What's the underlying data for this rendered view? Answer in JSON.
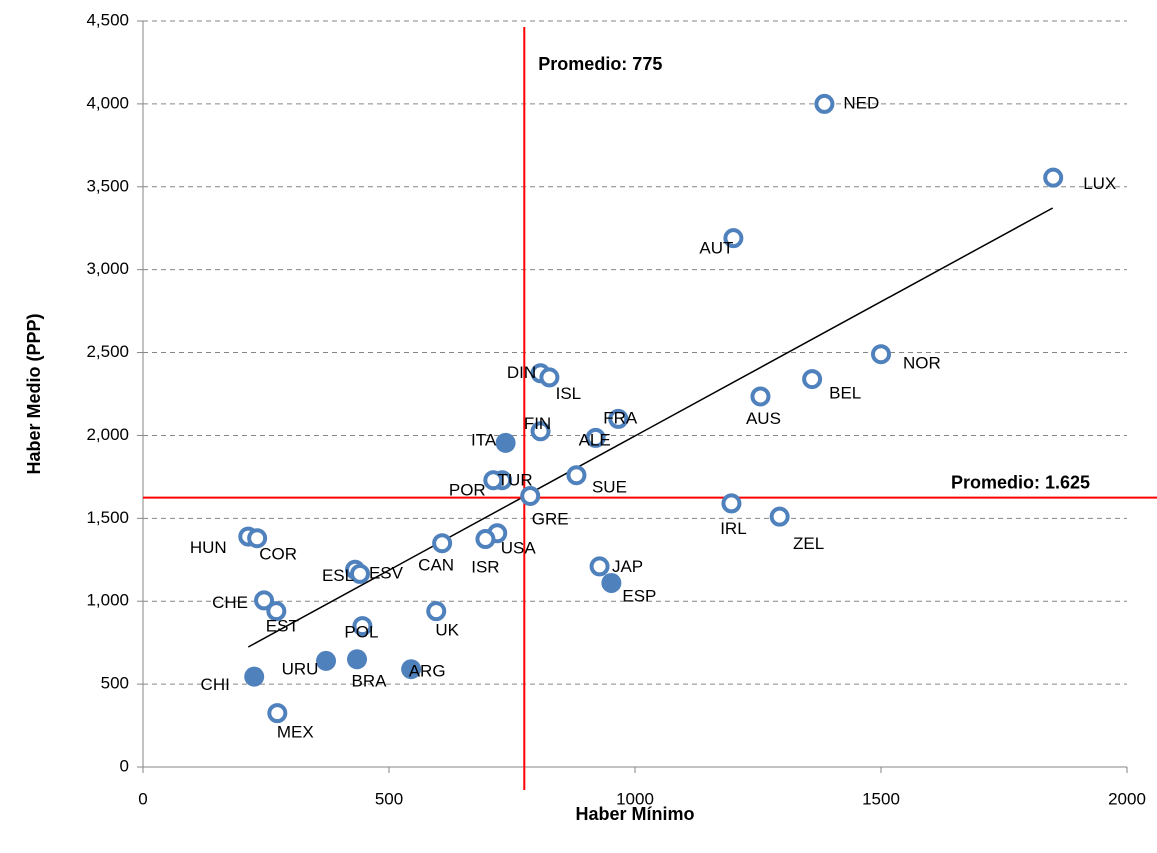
{
  "chart_data": {
    "type": "scatter",
    "x_label": "Haber Mínimo",
    "y_label": "Haber Medio (PPP)",
    "xlim": [
      0,
      2000
    ],
    "xticks": [
      0,
      500,
      1000,
      1500,
      2000
    ],
    "ylim": [
      0,
      4500
    ],
    "yticks": [
      0,
      500,
      {
        "value": 1000,
        "label": "1,000"
      },
      {
        "value": 1500,
        "label": "1,500"
      },
      {
        "value": 2000,
        "label": "2,000"
      },
      {
        "value": 2500,
        "label": "2,500"
      },
      {
        "value": 3000,
        "label": "3,000"
      },
      {
        "value": 3500,
        "label": "3,500"
      },
      {
        "value": 4000,
        "label": "4,000"
      },
      {
        "value": 4500,
        "label": "4,500"
      }
    ],
    "grid": true,
    "series": [
      {
        "marker": "hollow",
        "color": "#4f81bd",
        "labels": [
          "NED",
          "LUX",
          "AUT",
          "NOR",
          "BEL",
          "AUS",
          "DIN",
          "ISL",
          "FRA",
          "FIN",
          "ALE",
          "SUE",
          "TUR",
          "POR",
          "GRE",
          "IRL",
          "ZEL",
          "HUN",
          "COR",
          "USA",
          "ISR",
          "CAN",
          "ESL",
          "ESV",
          "JAP",
          "CHE",
          "EST",
          "POL",
          "UK",
          "MEX"
        ],
        "x": [
          1385,
          1850,
          1200,
          1500,
          1360,
          1255,
          808,
          826,
          966,
          808,
          920,
          881,
          730,
          712,
          787,
          1196,
          1294,
          214,
          232,
          720,
          696,
          608,
          431,
          441,
          928,
          246,
          271,
          446,
          596,
          273
        ],
        "y": [
          4000,
          3555,
          3190,
          2490,
          2340,
          2235,
          2375,
          2350,
          2100,
          2025,
          1985,
          1760,
          1730,
          1730,
          1635,
          1590,
          1510,
          1390,
          1380,
          1410,
          1375,
          1350,
          1190,
          1165,
          1210,
          1005,
          940,
          850,
          940,
          325
        ]
      },
      {
        "marker": "filled",
        "color": "#4f81bd",
        "labels": [
          "ITA",
          "ESP",
          "ARG",
          "URU",
          "BRA",
          "CHI"
        ],
        "x": [
          737,
          952,
          545,
          372,
          435,
          226
        ],
        "y": [
          1955,
          1110,
          590,
          640,
          650,
          545
        ]
      }
    ],
    "trendline": {
      "color": "#000000",
      "x": [
        214,
        1849
      ],
      "y": [
        724,
        3372
      ]
    },
    "reference_lines": [
      {
        "axis": "x",
        "value": 775,
        "label": "Promedio: 775",
        "color": "#ff0000"
      },
      {
        "axis": "y",
        "value": 1625,
        "label": "Promedio: 1.625",
        "color": "#ff0000"
      }
    ]
  }
}
